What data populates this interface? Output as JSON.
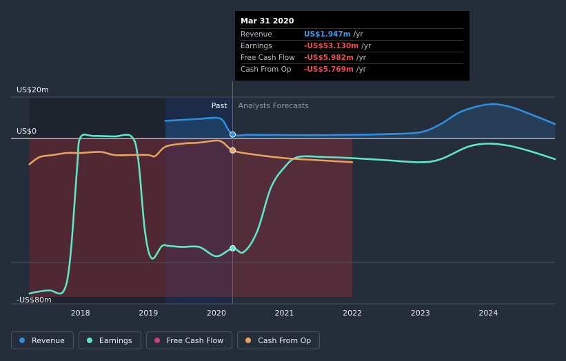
{
  "chart_data": {
    "type": "line",
    "title": "",
    "y_unit": "US$",
    "ylim": [
      -80,
      20
    ],
    "y_ticks": [
      {
        "value": 20,
        "label": "US$20m"
      },
      {
        "value": 0,
        "label": "US$0"
      },
      {
        "value": -80,
        "label": "-US$80m"
      }
    ],
    "x_ticks": [
      {
        "value": 2018,
        "label": "2018"
      },
      {
        "value": 2019,
        "label": "2019"
      },
      {
        "value": 2020,
        "label": "2020"
      },
      {
        "value": 2021,
        "label": "2021"
      },
      {
        "value": 2022,
        "label": "2022"
      },
      {
        "value": 2023,
        "label": "2023"
      },
      {
        "value": 2024,
        "label": "2024"
      }
    ],
    "xlim": [
      2016.98,
      2024.98
    ],
    "divider_x": 2020.24,
    "region_labels": {
      "past": "Past",
      "forecast": "Analysts Forecasts"
    },
    "series": [
      {
        "name": "Revenue",
        "color": "#2e8fe0",
        "points": [
          [
            2019.25,
            8.5
          ],
          [
            2019.5,
            9.0
          ],
          [
            2019.75,
            9.5
          ],
          [
            2020.0,
            10.0
          ],
          [
            2020.1,
            8.5
          ],
          [
            2020.24,
            1.947
          ],
          [
            2020.5,
            1.8
          ],
          [
            2021.0,
            1.7
          ],
          [
            2021.5,
            1.6
          ],
          [
            2022.0,
            1.8
          ],
          [
            2022.5,
            2.1
          ],
          [
            2023.0,
            3.0
          ],
          [
            2023.3,
            7.0
          ],
          [
            2023.6,
            13.0
          ],
          [
            2024.0,
            16.5
          ],
          [
            2024.3,
            15.5
          ],
          [
            2024.6,
            12.0
          ],
          [
            2024.98,
            7.0
          ]
        ]
      },
      {
        "name": "Earnings",
        "color": "#5fe6c8",
        "points": [
          [
            2017.25,
            -75.0
          ],
          [
            2017.4,
            -74.0
          ],
          [
            2017.55,
            -73.5
          ],
          [
            2017.75,
            -74.0
          ],
          [
            2017.85,
            -58.0
          ],
          [
            2017.95,
            -15.0
          ],
          [
            2018.0,
            0.5
          ],
          [
            2018.2,
            1.2
          ],
          [
            2018.5,
            1.0
          ],
          [
            2018.75,
            1.0
          ],
          [
            2018.85,
            -10.0
          ],
          [
            2018.95,
            -45.0
          ],
          [
            2019.05,
            -58.0
          ],
          [
            2019.2,
            -52.0
          ],
          [
            2019.3,
            -52.0
          ],
          [
            2019.5,
            -52.5
          ],
          [
            2019.75,
            -52.5
          ],
          [
            2020.0,
            -57.0
          ],
          [
            2020.24,
            -53.13
          ],
          [
            2020.4,
            -55.0
          ],
          [
            2020.6,
            -45.0
          ],
          [
            2020.8,
            -24.0
          ],
          [
            2021.0,
            -14.0
          ],
          [
            2021.2,
            -9.0
          ],
          [
            2021.6,
            -9.0
          ],
          [
            2022.0,
            -9.5
          ],
          [
            2022.5,
            -10.5
          ],
          [
            2023.0,
            -11.5
          ],
          [
            2023.3,
            -10.0
          ],
          [
            2023.7,
            -4.0
          ],
          [
            2024.0,
            -2.5
          ],
          [
            2024.3,
            -3.5
          ],
          [
            2024.6,
            -6.0
          ],
          [
            2024.98,
            -10.0
          ]
        ]
      },
      {
        "name": "Free Cash Flow",
        "color": "#cc3e7c",
        "points": []
      },
      {
        "name": "Cash From Op",
        "color": "#e8a35e",
        "points": [
          [
            2017.25,
            -12.5
          ],
          [
            2017.4,
            -9.0
          ],
          [
            2017.6,
            -8.0
          ],
          [
            2017.8,
            -7.0
          ],
          [
            2018.0,
            -7.0
          ],
          [
            2018.3,
            -6.5
          ],
          [
            2018.5,
            -8.0
          ],
          [
            2018.75,
            -8.0
          ],
          [
            2019.0,
            -8.0
          ],
          [
            2019.1,
            -8.5
          ],
          [
            2019.25,
            -4.0
          ],
          [
            2019.5,
            -2.5
          ],
          [
            2019.75,
            -2.0
          ],
          [
            2020.0,
            -1.0
          ],
          [
            2020.1,
            -2.0
          ],
          [
            2020.24,
            -5.769
          ],
          [
            2020.5,
            -7.5
          ],
          [
            2021.0,
            -9.5
          ],
          [
            2021.5,
            -10.5
          ],
          [
            2022.0,
            -11.5
          ]
        ]
      }
    ]
  },
  "tooltip": {
    "date": "Mar 31 2020",
    "rows": [
      {
        "label": "Revenue",
        "value": "US$1.947m",
        "unit": "/yr",
        "color": "#3e9cf0"
      },
      {
        "label": "Earnings",
        "value": "-US$53.130m",
        "unit": "/yr",
        "color": "#f04b4b"
      },
      {
        "label": "Free Cash Flow",
        "value": "-US$5.982m",
        "unit": "/yr",
        "color": "#f04b4b"
      },
      {
        "label": "Cash From Op",
        "value": "-US$5.769m",
        "unit": "/yr",
        "color": "#f04b4b"
      }
    ]
  },
  "legend": [
    {
      "label": "Revenue",
      "color": "#2e8fe0"
    },
    {
      "label": "Earnings",
      "color": "#5fe6c8"
    },
    {
      "label": "Free Cash Flow",
      "color": "#cc3e7c"
    },
    {
      "label": "Cash From Op",
      "color": "#e8a35e"
    }
  ]
}
